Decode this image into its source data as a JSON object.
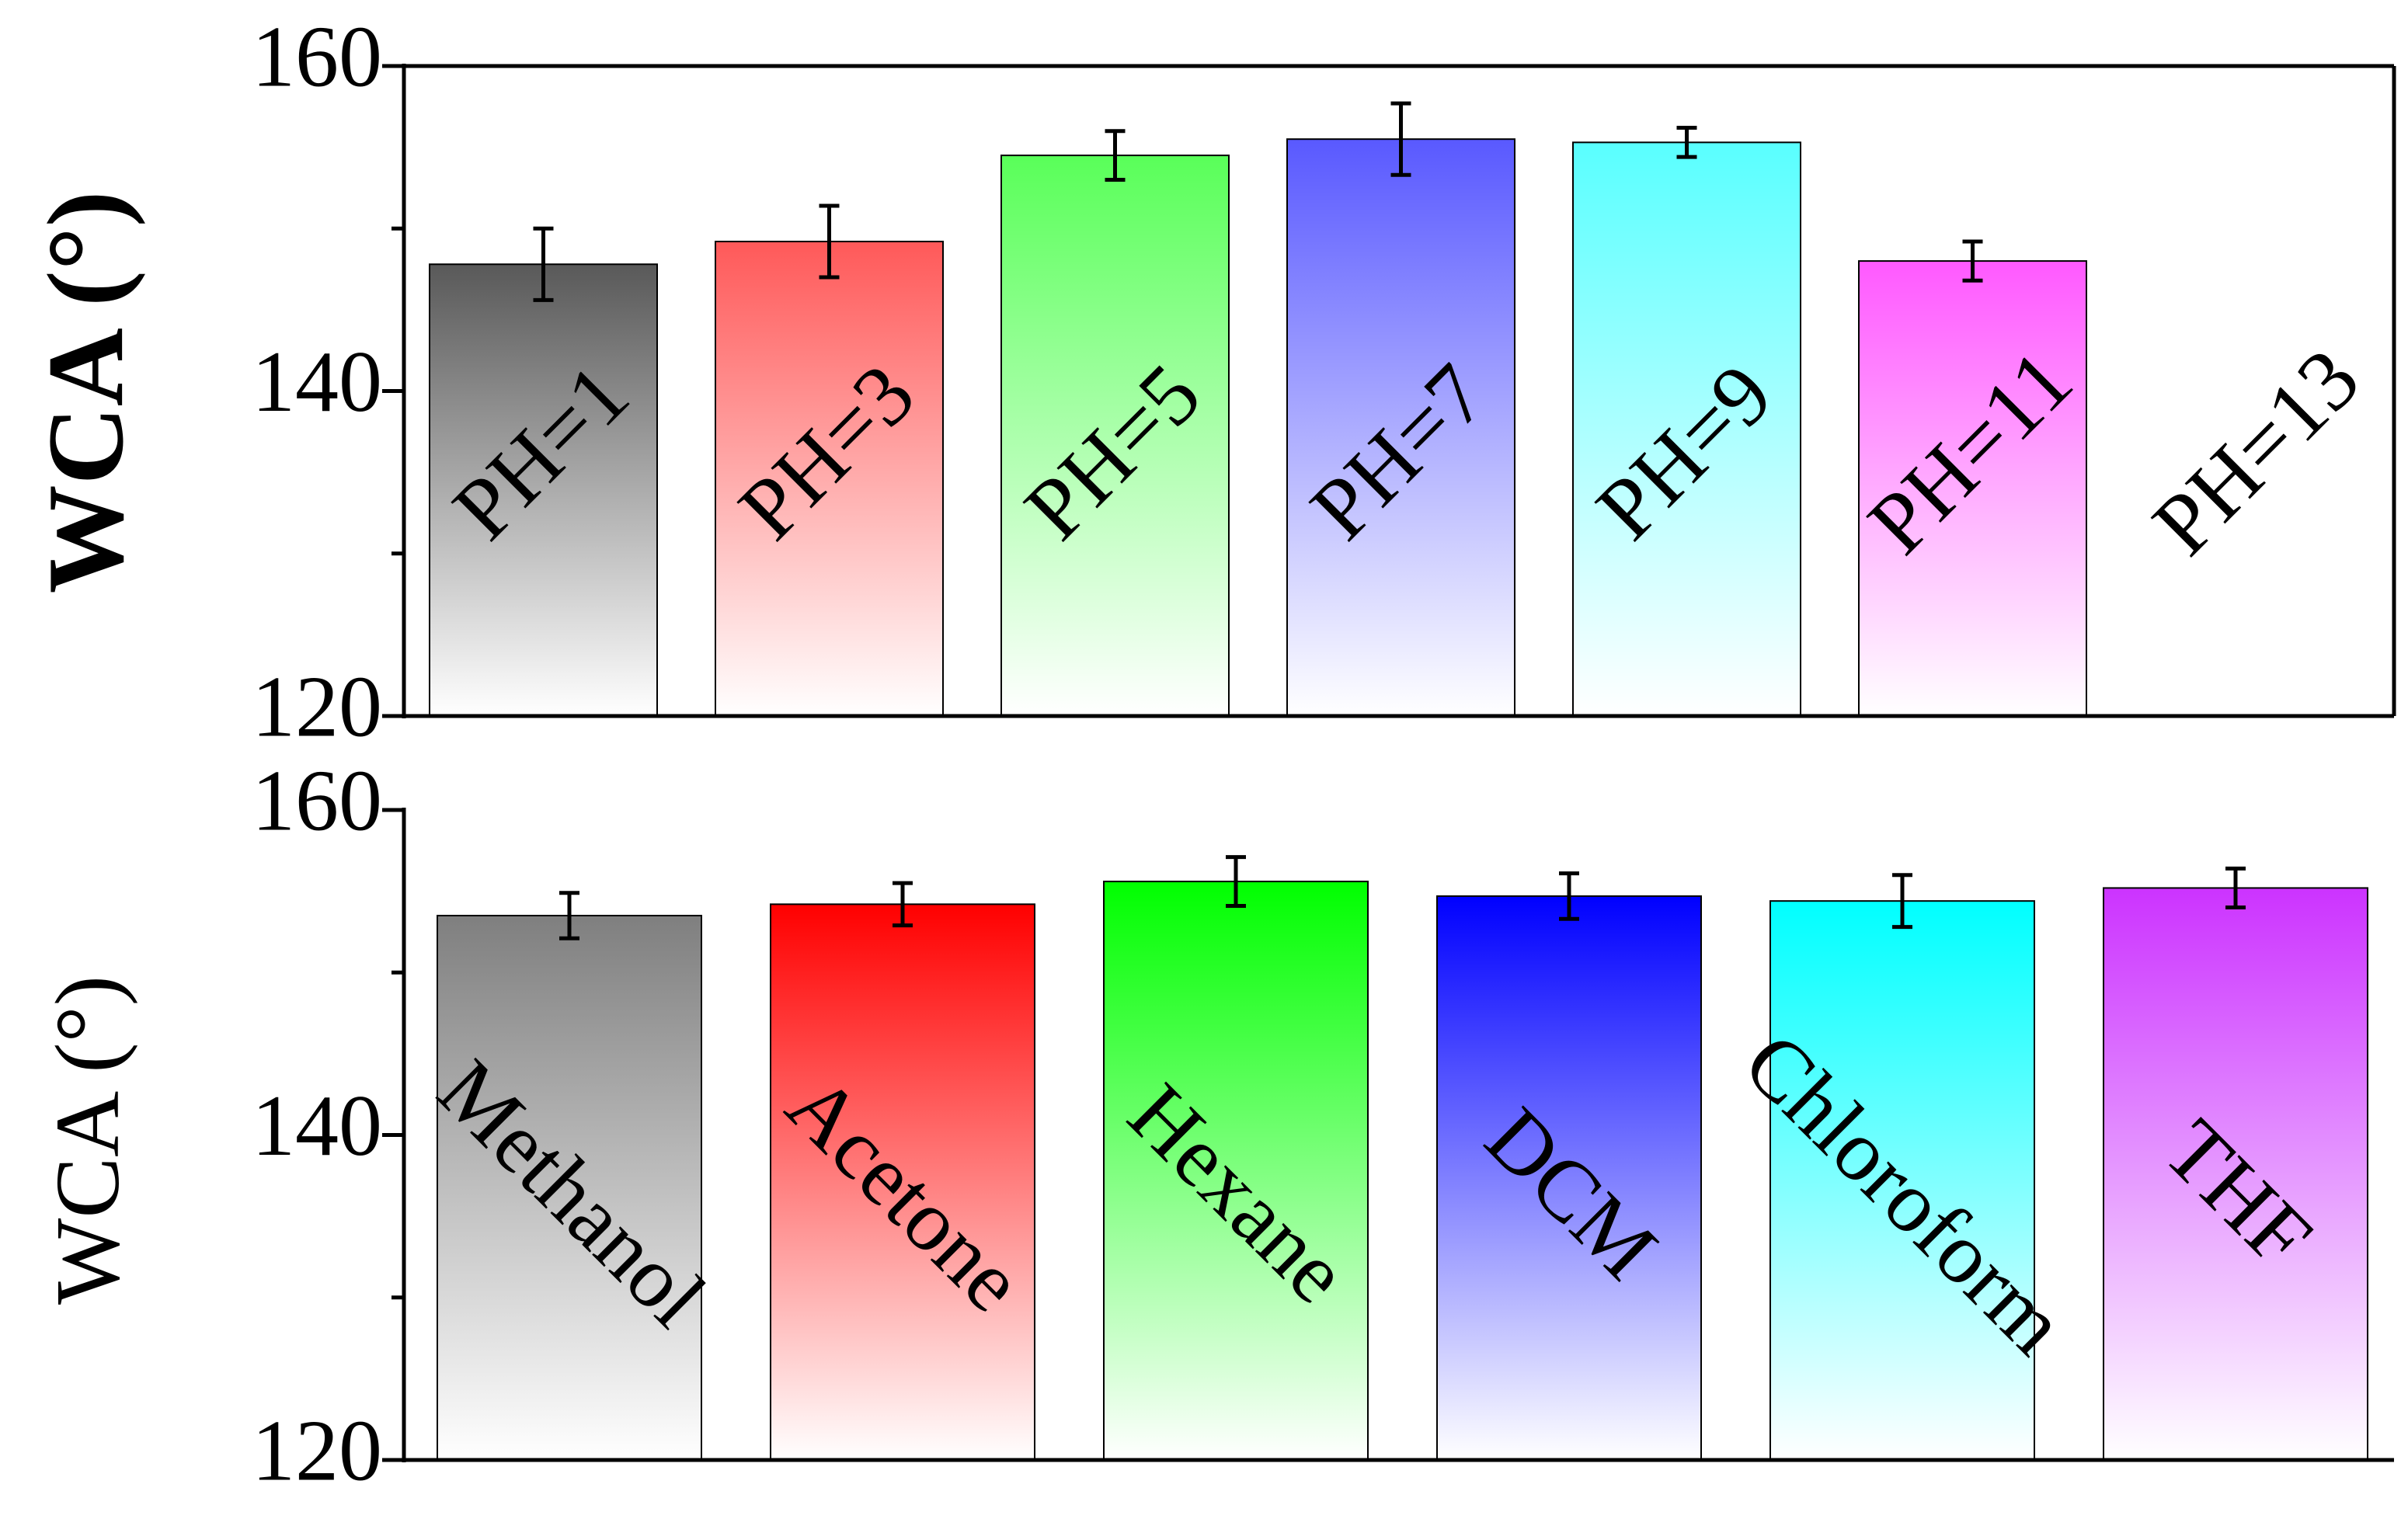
{
  "chart_data": [
    {
      "type": "bar",
      "title": "",
      "xlabel": "",
      "ylabel": "WCA (°)",
      "ylim": [
        120,
        160
      ],
      "yticks": [
        "120",
        "140",
        "160"
      ],
      "categories": [
        "PH=1",
        "PH=3",
        "PH=5",
        "PH=7",
        "PH=9",
        "PH=11",
        "PH=13"
      ],
      "values": [
        147.8,
        149.2,
        154.5,
        155.5,
        155.3,
        148.0,
        null
      ],
      "errors": [
        2.2,
        2.2,
        1.5,
        2.2,
        0.9,
        1.2,
        null
      ],
      "colors": [
        "#595959",
        "#ff5959",
        "#59ff59",
        "#5959ff",
        "#59ffff",
        "#ff59ff",
        "#ffffff"
      ],
      "grid": false,
      "legend": "none"
    },
    {
      "type": "bar",
      "title": "",
      "xlabel": "",
      "ylabel": "WCA (°)",
      "ylim": [
        120,
        160
      ],
      "yticks": [
        "120",
        "140",
        "160"
      ],
      "categories": [
        "Methanol",
        "Acetone",
        "Hexane",
        "DCM",
        "Chloroform",
        "THF"
      ],
      "values": [
        153.5,
        154.2,
        155.6,
        154.7,
        154.4,
        155.2
      ],
      "errors": [
        1.4,
        1.3,
        1.5,
        1.4,
        1.6,
        1.2
      ],
      "colors": [
        "#7f7f7f",
        "#ff0000",
        "#00ff00",
        "#0000ff",
        "#00ffff",
        "#cc33ff"
      ],
      "grid": false,
      "legend": "none"
    }
  ]
}
